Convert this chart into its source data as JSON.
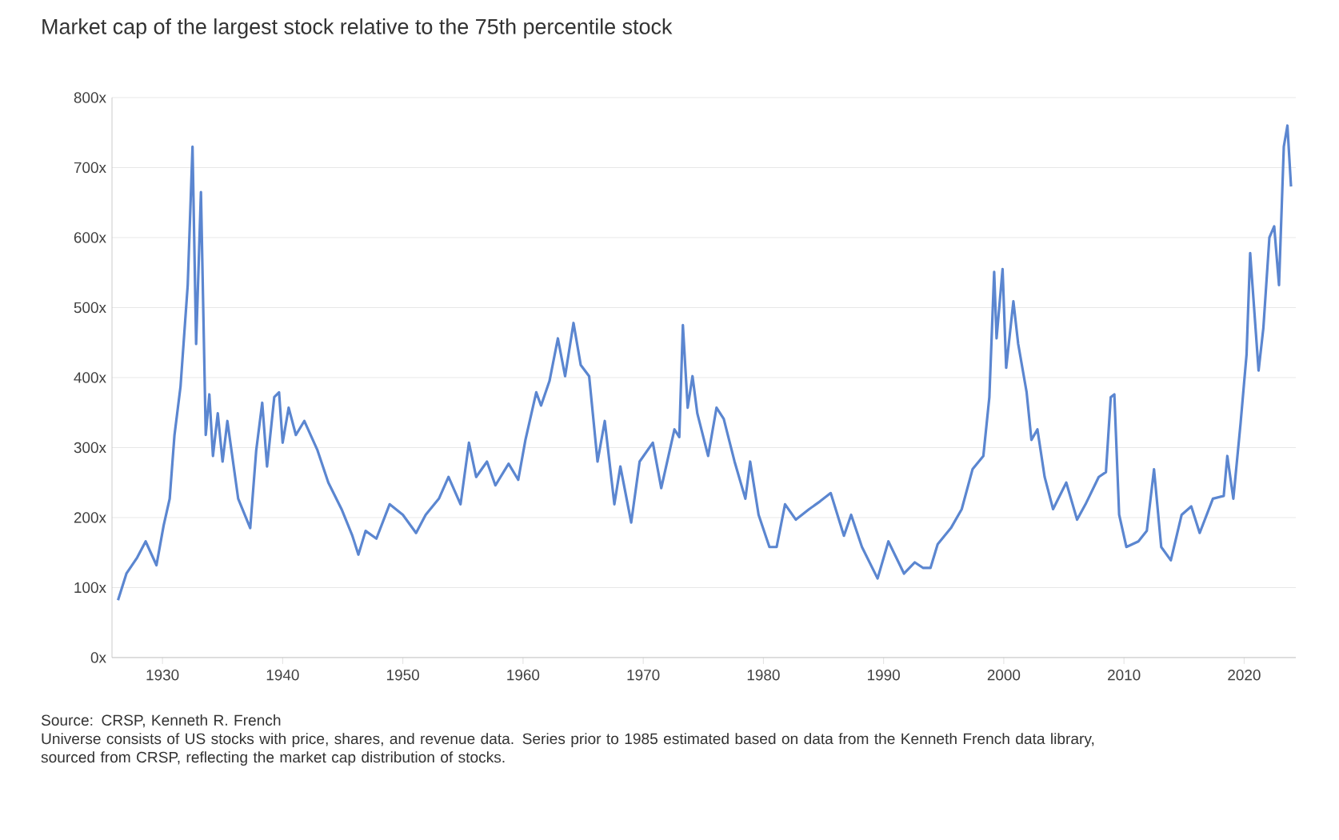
{
  "chart_data": {
    "type": "line",
    "title": "Market cap of the largest stock relative to the 75th percentile stock",
    "x": [
      1926.3,
      1927.0,
      1927.9,
      1928.6,
      1929.5,
      1930.1,
      1930.6,
      1931.0,
      1931.5,
      1932.1,
      1932.5,
      1932.8,
      1933.2,
      1933.6,
      1933.9,
      1934.2,
      1934.6,
      1935.0,
      1935.4,
      1936.3,
      1937.3,
      1937.8,
      1938.3,
      1938.7,
      1939.3,
      1939.7,
      1940.0,
      1940.5,
      1941.1,
      1941.8,
      1942.9,
      1943.8,
      1944.9,
      1945.8,
      1946.3,
      1946.9,
      1947.8,
      1948.9,
      1950.0,
      1951.1,
      1951.9,
      1953.0,
      1953.8,
      1954.8,
      1955.5,
      1956.1,
      1957.0,
      1957.7,
      1958.8,
      1959.6,
      1960.2,
      1961.1,
      1961.5,
      1962.2,
      1962.9,
      1963.5,
      1964.2,
      1964.8,
      1965.5,
      1966.2,
      1966.8,
      1967.6,
      1968.1,
      1969.0,
      1969.7,
      1970.8,
      1971.5,
      1972.6,
      1973.0,
      1973.3,
      1973.7,
      1974.1,
      1974.5,
      1975.4,
      1976.1,
      1976.7,
      1977.6,
      1978.5,
      1978.9,
      1979.6,
      1980.5,
      1981.1,
      1981.8,
      1982.7,
      1983.8,
      1984.7,
      1985.6,
      1986.7,
      1987.3,
      1988.2,
      1989.5,
      1990.4,
      1991.7,
      1992.6,
      1993.3,
      1993.9,
      1994.5,
      1995.6,
      1996.5,
      1997.4,
      1998.3,
      1998.8,
      1999.2,
      1999.4,
      1999.9,
      2000.2,
      2000.8,
      2001.2,
      2001.9,
      2002.3,
      2002.8,
      2003.4,
      2004.1,
      2005.2,
      2006.1,
      2006.8,
      2007.9,
      2008.5,
      2008.9,
      2009.2,
      2009.6,
      2010.2,
      2011.2,
      2011.9,
      2012.5,
      2013.1,
      2013.9,
      2014.8,
      2015.6,
      2016.3,
      2017.4,
      2018.3,
      2018.6,
      2019.1,
      2019.7,
      2020.2,
      2020.5,
      2021.2,
      2021.6,
      2022.1,
      2022.5,
      2022.9,
      2023.3,
      2023.6,
      2023.9
    ],
    "values": [
      82,
      120,
      143,
      166,
      132,
      189,
      227,
      318,
      387,
      532,
      730,
      448,
      665,
      318,
      376,
      288,
      349,
      280,
      338,
      227,
      185,
      296,
      364,
      273,
      372,
      379,
      307,
      357,
      318,
      338,
      296,
      250,
      212,
      174,
      147,
      181,
      170,
      219,
      204,
      178,
      204,
      227,
      258,
      219,
      307,
      258,
      280,
      246,
      277,
      254,
      311,
      379,
      360,
      395,
      456,
      402,
      478,
      418,
      402,
      280,
      338,
      219,
      273,
      193,
      280,
      307,
      242,
      326,
      315,
      475,
      357,
      402,
      349,
      288,
      357,
      341,
      280,
      227,
      280,
      204,
      158,
      158,
      219,
      197,
      212,
      223,
      235,
      174,
      204,
      158,
      113,
      166,
      120,
      136,
      128,
      128,
      162,
      185,
      212,
      269,
      288,
      372,
      551,
      456,
      555,
      414,
      509,
      448,
      379,
      311,
      326,
      258,
      212,
      250,
      197,
      219,
      258,
      265,
      372,
      376,
      204,
      158,
      166,
      181,
      269,
      158,
      139,
      204,
      216,
      178,
      227,
      231,
      288,
      227,
      334,
      433,
      578,
      410,
      471,
      600,
      616,
      532,
      730,
      760,
      673
    ],
    "color": "#5b86d0",
    "xlim": [
      1925.8,
      2024.3
    ],
    "ylim": [
      0,
      800
    ],
    "xticks": [
      1930,
      1940,
      1950,
      1960,
      1970,
      1980,
      1990,
      2000,
      2010,
      2020
    ],
    "yticks": [
      {
        "value": 0,
        "label": "0x"
      },
      {
        "value": 100,
        "label": "100x"
      },
      {
        "value": 200,
        "label": "200x"
      },
      {
        "value": 300,
        "label": "300x"
      },
      {
        "value": 400,
        "label": "400x"
      },
      {
        "value": 500,
        "label": "500x"
      },
      {
        "value": 600,
        "label": "600x"
      },
      {
        "value": 700,
        "label": "700x"
      },
      {
        "value": 800,
        "label": "800x"
      }
    ],
    "grid": "y",
    "annotations": [
      "Source: CRSP, Kenneth R. French",
      "Universe consists of US stocks with price, shares, and revenue data. Series prior to 1985 estimated based on data from the Kenneth French data library, sourced from CRSP, reflecting the market cap distribution of stocks."
    ]
  }
}
